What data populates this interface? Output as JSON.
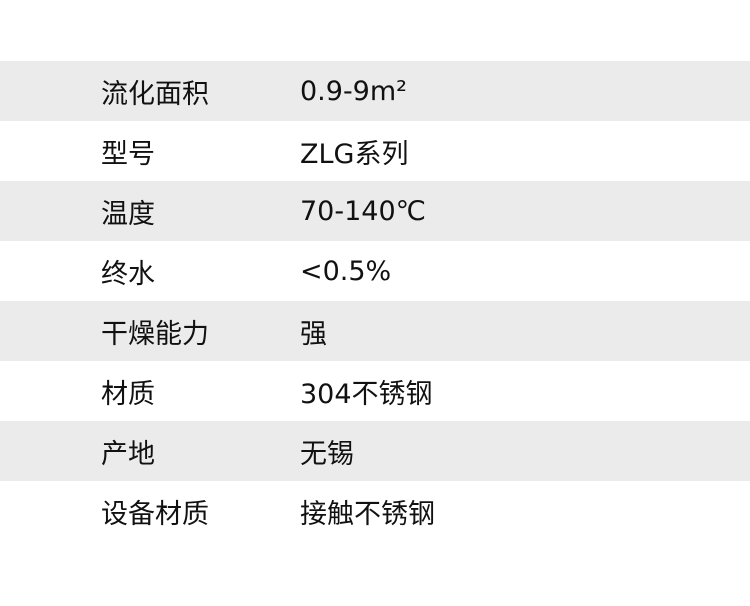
{
  "colors": {
    "stripe": "#ebebeb",
    "text": "#111111"
  },
  "rows": [
    {
      "label": "流化面积",
      "value": "0.9-9m²"
    },
    {
      "label": "型号",
      "value": "ZLG系列"
    },
    {
      "label": "温度",
      "value": "70-140℃"
    },
    {
      "label": "终水",
      "value": "<0.5%"
    },
    {
      "label": "干燥能力",
      "value": "强"
    },
    {
      "label": "材质",
      "value": "304不锈钢"
    },
    {
      "label": "产地",
      "value": "无锡"
    },
    {
      "label": "设备材质",
      "value": "接触不锈钢"
    }
  ]
}
